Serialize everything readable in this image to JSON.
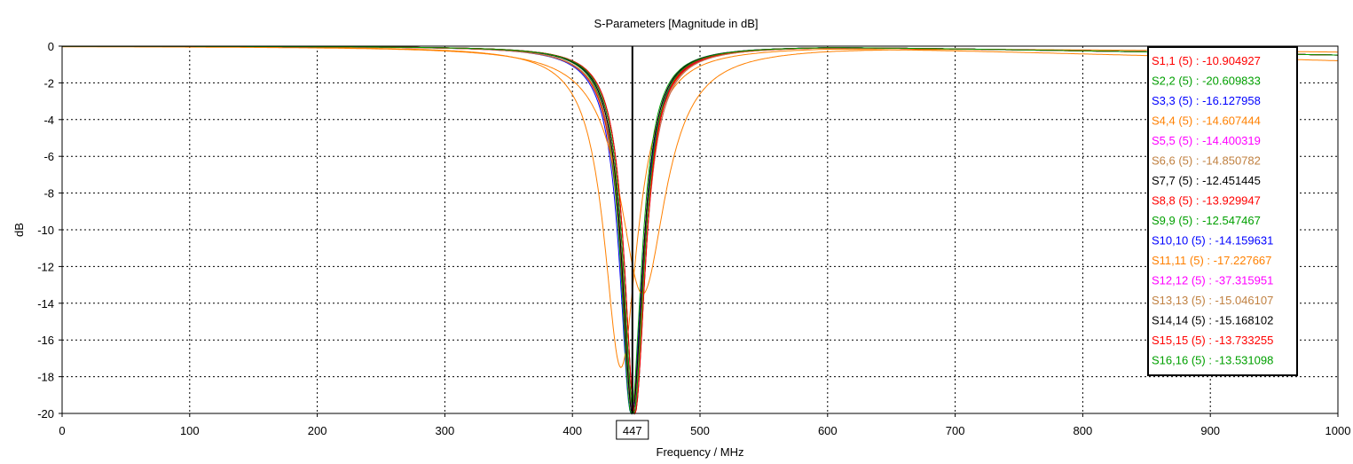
{
  "chart_data": {
    "type": "line",
    "title": "S-Parameters [Magnitude in dB]",
    "xlabel": "Frequency / MHz",
    "ylabel": "dB",
    "xlim": [
      0,
      1000
    ],
    "ylim": [
      -20,
      0
    ],
    "xticks": [
      0,
      100,
      200,
      300,
      400,
      500,
      600,
      700,
      800,
      900,
      1000
    ],
    "yticks": [
      0,
      -2,
      -4,
      -6,
      -8,
      -10,
      -12,
      -14,
      -16,
      -18,
      -20
    ],
    "grid": "dashed",
    "marker": {
      "x": 447,
      "label": "447"
    },
    "legend_position": "top-right",
    "series": [
      {
        "name": "S1,1",
        "run": "(5)",
        "value": "-10.904927",
        "color": "#ff0000",
        "f0": 448,
        "floor": -20,
        "w": 10,
        "tail": 0.8
      },
      {
        "name": "S2,2",
        "run": "(5)",
        "value": "-20.609833",
        "color": "#00a000",
        "f0": 447,
        "floor": -20,
        "w": 10,
        "tail": 0.8
      },
      {
        "name": "S3,3",
        "run": "(5)",
        "value": "-16.127958",
        "color": "#0000ff",
        "f0": 446,
        "floor": -20,
        "w": 11,
        "tail": 0.8
      },
      {
        "name": "S4,4",
        "run": "(5)",
        "value": "-14.607444",
        "color": "#ff8000",
        "f0": 438,
        "floor": -17.5,
        "w": 16,
        "tail": 1.3
      },
      {
        "name": "S5,5",
        "run": "(5)",
        "value": "-14.400319",
        "color": "#ff00ff",
        "f0": 448,
        "floor": -20,
        "w": 11,
        "tail": 0.8
      },
      {
        "name": "S6,6",
        "run": "(5)",
        "value": "-14.850782",
        "color": "#c08040",
        "f0": 447,
        "floor": -20,
        "w": 11,
        "tail": 0.8
      },
      {
        "name": "S7,7",
        "run": "(5)",
        "value": "-12.451445",
        "color": "#000000",
        "f0": 449,
        "floor": -20,
        "w": 10,
        "tail": 0.8
      },
      {
        "name": "S8,8",
        "run": "(5)",
        "value": "-13.929947",
        "color": "#ff0000",
        "f0": 447,
        "floor": -19.5,
        "w": 11,
        "tail": 0.8
      },
      {
        "name": "S9,9",
        "run": "(5)",
        "value": "-12.547467",
        "color": "#00a000",
        "f0": 446,
        "floor": -20,
        "w": 10,
        "tail": 0.8
      },
      {
        "name": "S10,10",
        "run": "(5)",
        "value": "-14.159631",
        "color": "#0000ff",
        "f0": 447,
        "floor": -20,
        "w": 10,
        "tail": 0.8
      },
      {
        "name": "S11,11",
        "run": "(5)",
        "value": "-17.227667",
        "color": "#ff8000",
        "f0": 455,
        "floor": -13.5,
        "w": 22,
        "tail": 0.5
      },
      {
        "name": "S12,12",
        "run": "(5)",
        "value": "-37.315951",
        "color": "#ff00ff",
        "f0": 447,
        "floor": -20,
        "w": 10,
        "tail": 0.8
      },
      {
        "name": "S13,13",
        "run": "(5)",
        "value": "-15.046107",
        "color": "#c08040",
        "f0": 448,
        "floor": -20,
        "w": 11,
        "tail": 0.8
      },
      {
        "name": "S14,14",
        "run": "(5)",
        "value": "-15.168102",
        "color": "#000000",
        "f0": 447,
        "floor": -20,
        "w": 10,
        "tail": 0.8
      },
      {
        "name": "S15,15",
        "run": "(5)",
        "value": "-13.733255",
        "color": "#ff0000",
        "f0": 449,
        "floor": -20,
        "w": 10,
        "tail": 0.8
      },
      {
        "name": "S16,16",
        "run": "(5)",
        "value": "-13.531098",
        "color": "#00a000",
        "f0": 448,
        "floor": -20,
        "w": 10,
        "tail": 0.8
      }
    ]
  }
}
